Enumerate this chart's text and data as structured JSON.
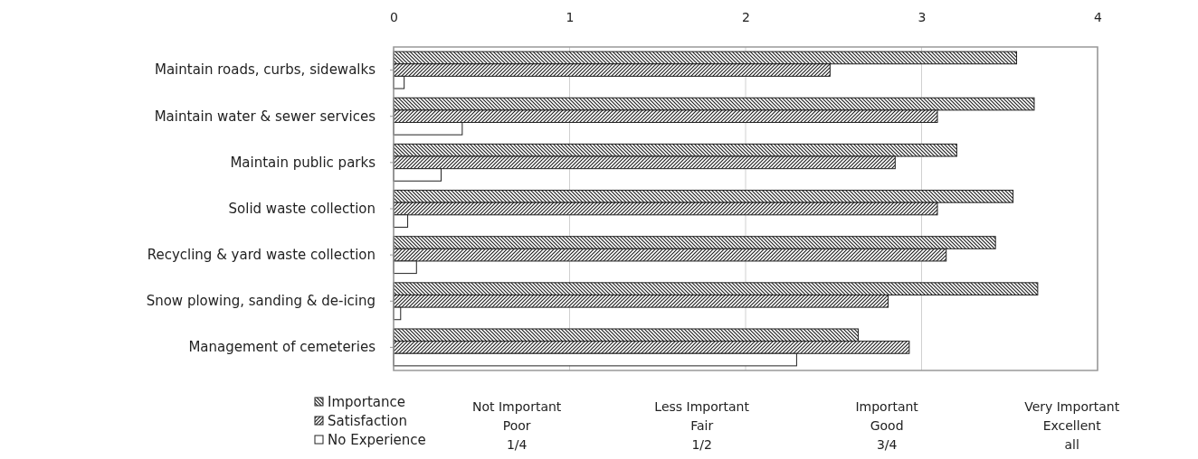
{
  "chart_data": {
    "type": "bar",
    "orientation": "horizontal",
    "categories": [
      "Maintain roads, curbs, sidewalks",
      "Maintain water & sewer services",
      "Maintain public parks",
      "Solid waste collection",
      "Recycling & yard waste collection",
      "Snow plowing, sanding & de-icing",
      "Management of cemeteries"
    ],
    "series": [
      {
        "name": "Importance",
        "color": "#222222",
        "values": [
          3.54,
          3.64,
          3.2,
          3.52,
          3.42,
          3.66,
          2.64
        ]
      },
      {
        "name": "Satisfaction",
        "color": "#222222",
        "values": [
          2.48,
          3.09,
          2.85,
          3.09,
          3.14,
          2.81,
          2.93
        ]
      },
      {
        "name": "No Experience",
        "color": "#222222",
        "values": [
          0.06,
          0.39,
          0.27,
          0.08,
          0.13,
          0.04,
          2.29
        ]
      }
    ],
    "xlim": [
      0,
      4
    ],
    "xticks": [
      0,
      1,
      2,
      3,
      4
    ],
    "annotations": [
      "Not Important\nPoor\n1/4",
      "Less Important\nFair\n1/2",
      "Important\nGood\n3/4",
      "Very Important\nExcellent\nall"
    ],
    "grid": "x",
    "legend": "bottom left"
  }
}
